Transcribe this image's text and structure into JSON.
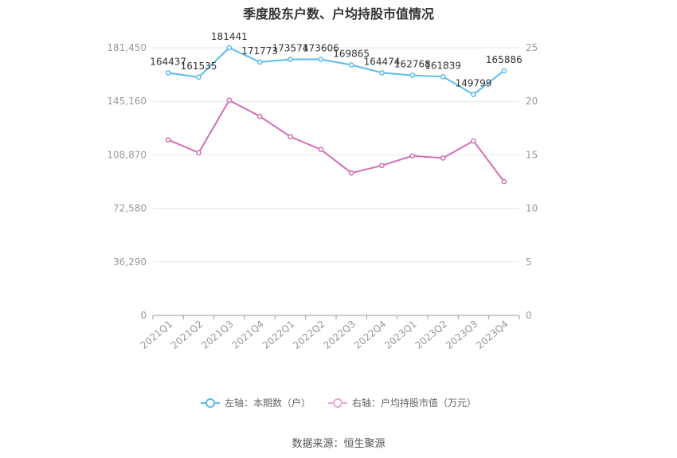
{
  "chart_data": {
    "type": "line",
    "title": "季度股东户数、户均持股市值情况",
    "categories": [
      "2021Q1",
      "2021Q2",
      "2021Q3",
      "2021Q4",
      "2022Q1",
      "2022Q2",
      "2022Q3",
      "2022Q4",
      "2023Q1",
      "2023Q2",
      "2023Q3",
      "2023Q4"
    ],
    "left_axis": {
      "ticks": [
        "0",
        "36,290",
        "72,580",
        "108,870",
        "145,160",
        "181,450"
      ],
      "min": 0,
      "max": 181450
    },
    "right_axis": {
      "ticks": [
        "0",
        "5",
        "10",
        "15",
        "20",
        "25"
      ],
      "min": 0,
      "max": 25
    },
    "series": [
      {
        "name": "左轴：本期数（户）",
        "axis": "left",
        "color": "#5bbcec",
        "values": [
          164437,
          161535,
          181441,
          171773,
          173574,
          173606,
          169865,
          164474,
          162768,
          161839,
          149799,
          165886
        ],
        "labels": [
          "164437",
          "161535",
          "181441",
          "171773",
          "173574",
          "173606",
          "169865",
          "164474",
          "162768",
          "161839",
          "149799",
          "165886"
        ]
      },
      {
        "name": "右轴：户均持股市值（万元）",
        "axis": "right",
        "color": "#d36fb3",
        "values": [
          16.4,
          15.2,
          20.1,
          18.6,
          16.7,
          15.5,
          13.3,
          14.0,
          14.9,
          14.7,
          16.3,
          12.5
        ]
      }
    ],
    "grid": true,
    "legend_position": "bottom"
  },
  "source": "数据来源：恒生聚源"
}
